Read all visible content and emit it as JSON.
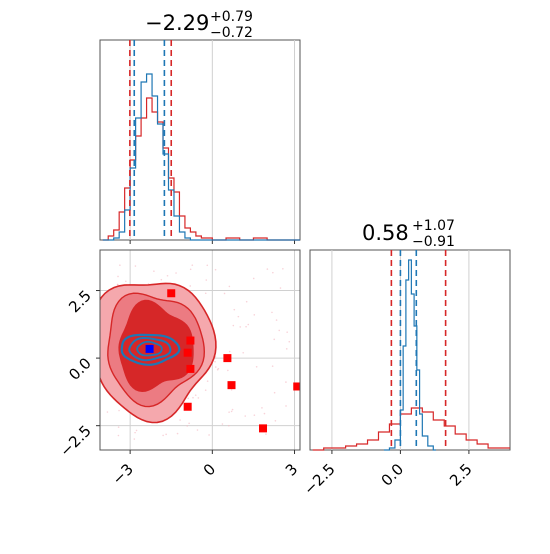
{
  "colors": {
    "dist_a": "#d62728",
    "dist_b": "#1f77b4",
    "square_red": "#ff0000",
    "square_blue": "#0000ff"
  },
  "chart_data": [
    {
      "type": "histogram",
      "panel": "top-left",
      "title_main": "−2.29",
      "title_sup": "+0.79",
      "title_sub": "−0.72",
      "xlim": [
        -4.1,
        3.2
      ],
      "ylim": [
        0,
        1.0
      ],
      "grid": true,
      "quantile_lines": {
        "red": [
          -3.01,
          -1.5
        ],
        "blue": [
          -2.85,
          -1.75
        ]
      },
      "series": [
        {
          "name": "",
          "color": "red",
          "x": [
            -4.0,
            -3.8,
            -3.6,
            -3.4,
            -3.2,
            -3.0,
            -2.8,
            -2.6,
            -2.4,
            -2.2,
            -2.0,
            -1.8,
            -1.6,
            -1.4,
            -1.2,
            -1.0,
            -0.8,
            -0.6,
            -0.4,
            -0.2,
            0.0,
            0.5,
            1.0,
            1.5,
            2.0,
            2.5,
            3.0
          ],
          "values": [
            0.0,
            0.02,
            0.05,
            0.14,
            0.26,
            0.4,
            0.52,
            0.61,
            0.71,
            0.64,
            0.59,
            0.46,
            0.31,
            0.24,
            0.12,
            0.06,
            0.04,
            0.02,
            0.01,
            0.01,
            0.0,
            0.01,
            0.0,
            0.01,
            0.0,
            0.0,
            0.0
          ]
        },
        {
          "name": "",
          "color": "blue",
          "x": [
            -4.0,
            -3.8,
            -3.6,
            -3.4,
            -3.2,
            -3.0,
            -2.8,
            -2.6,
            -2.4,
            -2.2,
            -2.0,
            -1.8,
            -1.6,
            -1.4,
            -1.2,
            -1.0,
            -0.8,
            -0.6,
            -0.4,
            -0.2,
            0.0,
            0.5,
            1.0,
            1.5,
            2.0,
            2.5,
            3.0
          ],
          "values": [
            0.0,
            0.0,
            0.01,
            0.04,
            0.15,
            0.36,
            0.61,
            0.79,
            0.83,
            0.72,
            0.58,
            0.43,
            0.25,
            0.12,
            0.04,
            0.01,
            0.0,
            0.0,
            0.0,
            0.0,
            0.0,
            0.0,
            0.0,
            0.0,
            0.0,
            0.0,
            0.0
          ]
        }
      ],
      "xticks": [
        -3,
        0,
        3
      ]
    },
    {
      "type": "contour",
      "panel": "bottom-left",
      "xlim": [
        -4.1,
        3.2
      ],
      "ylim": [
        -3.4,
        4.0
      ],
      "grid": true,
      "xticks": [
        -3,
        0,
        3
      ],
      "xticklabels": [
        "−3",
        "0",
        "3"
      ],
      "yticks": [
        2.5,
        0.0,
        -2.5
      ],
      "yticklabels": [
        "2.5",
        "0.0",
        "−2.5"
      ],
      "red_points": [
        [
          -1.5,
          2.4
        ],
        [
          -0.8,
          0.65
        ],
        [
          -0.9,
          0.2
        ],
        [
          -0.8,
          -0.4
        ],
        [
          0.55,
          0.0
        ],
        [
          0.7,
          -1.0
        ],
        [
          -0.9,
          -1.8
        ],
        [
          1.85,
          -2.6
        ],
        [
          3.1,
          -1.05
        ]
      ],
      "blue_point": [
        -2.29,
        0.34
      ],
      "contours": {
        "red_centre": [
          -2.2,
          0.4
        ],
        "blue_centre": [
          -2.3,
          0.34
        ]
      }
    },
    {
      "type": "histogram",
      "panel": "bottom-right",
      "title_main": "0.58",
      "title_sup": "+1.07",
      "title_sub": "−0.91",
      "xlim": [
        -3.3,
        4.0
      ],
      "ylim": [
        0,
        1.0
      ],
      "grid": true,
      "quantile_lines": {
        "red": [
          -0.33,
          1.65
        ],
        "blue": [
          0.0,
          0.58
        ]
      },
      "xticks": [
        -2.5,
        0.0,
        2.5
      ],
      "xticklabels": [
        "−2.5",
        "0.0",
        "2.5"
      ],
      "series": [
        {
          "name": "",
          "color": "red",
          "x": [
            -3.2,
            -2.8,
            -2.4,
            -2.0,
            -1.6,
            -1.2,
            -0.8,
            -0.4,
            0.0,
            0.4,
            0.8,
            1.2,
            1.6,
            2.0,
            2.4,
            2.8,
            3.2,
            3.6
          ],
          "values": [
            0.0,
            0.01,
            0.01,
            0.02,
            0.03,
            0.05,
            0.09,
            0.13,
            0.18,
            0.21,
            0.19,
            0.15,
            0.12,
            0.08,
            0.05,
            0.03,
            0.01,
            0.01
          ]
        },
        {
          "name": "",
          "color": "blue",
          "x": [
            -0.6,
            -0.4,
            -0.2,
            0.0,
            0.1,
            0.2,
            0.3,
            0.4,
            0.5,
            0.6,
            0.7,
            0.8,
            1.0,
            1.2
          ],
          "values": [
            0.0,
            0.01,
            0.05,
            0.2,
            0.52,
            0.85,
            0.95,
            0.78,
            0.62,
            0.4,
            0.18,
            0.07,
            0.02,
            0.0
          ]
        }
      ]
    }
  ]
}
